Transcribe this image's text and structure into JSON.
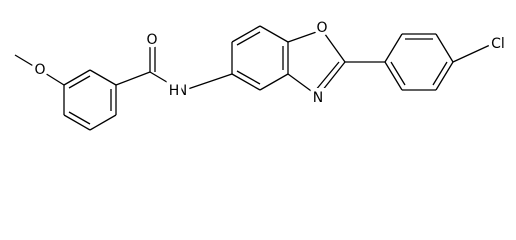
{
  "atoms": [
    {
      "label": "O"
    },
    {
      "label": "O"
    },
    {
      "label": "N"
    },
    {
      "label": "H"
    },
    {
      "label": "O"
    },
    {
      "label": "N"
    },
    {
      "label": "Cl"
    }
  ]
}
